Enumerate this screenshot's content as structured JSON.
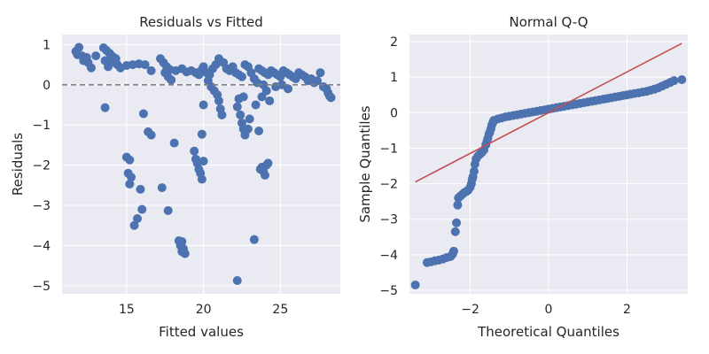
{
  "chart_data": [
    {
      "type": "scatter",
      "title": "Residuals vs Fitted",
      "xlabel": "Fitted values",
      "ylabel": "Residuals",
      "xlim": [
        10.8,
        28.9
      ],
      "ylim": [
        -5.2,
        1.25
      ],
      "xticks": [
        15,
        20,
        25
      ],
      "yticks": [
        -5,
        -4,
        -3,
        -2,
        -1,
        0,
        1
      ],
      "xtick_labels": [
        "15",
        "20",
        "25"
      ],
      "ytick_labels": [
        "−5",
        "−4",
        "−3",
        "−2",
        "−1",
        "0",
        "1"
      ],
      "grid": true,
      "reference_line": {
        "type": "horizontal",
        "y": 0,
        "style": "dashed",
        "color": "#808080"
      },
      "color": "#4c72b0",
      "points": [
        [
          11.7,
          0.83
        ],
        [
          11.9,
          0.93
        ],
        [
          12.1,
          0.72
        ],
        [
          12.3,
          0.62
        ],
        [
          12.5,
          0.55
        ],
        [
          12.4,
          0.68
        ],
        [
          12.7,
          0.42
        ],
        [
          13.0,
          0.72
        ],
        [
          11.8,
          0.75
        ],
        [
          12.2,
          0.6
        ],
        [
          13.5,
          0.92
        ],
        [
          13.7,
          0.85
        ],
        [
          13.9,
          0.78
        ],
        [
          14.1,
          0.7
        ],
        [
          14.3,
          0.65
        ],
        [
          13.6,
          0.6
        ],
        [
          14.0,
          0.55
        ],
        [
          14.4,
          0.5
        ],
        [
          13.8,
          0.45
        ],
        [
          14.6,
          0.42
        ],
        [
          15.0,
          0.48
        ],
        [
          15.4,
          0.5
        ],
        [
          15.8,
          0.52
        ],
        [
          16.2,
          0.5
        ],
        [
          16.6,
          0.35
        ],
        [
          17.2,
          0.65
        ],
        [
          17.4,
          0.55
        ],
        [
          17.6,
          0.45
        ],
        [
          17.8,
          0.38
        ],
        [
          17.5,
          0.3
        ],
        [
          17.7,
          0.2
        ],
        [
          17.9,
          0.12
        ],
        [
          18.2,
          0.35
        ],
        [
          18.6,
          0.4
        ],
        [
          18.9,
          0.32
        ],
        [
          19.2,
          0.35
        ],
        [
          19.5,
          0.3
        ],
        [
          19.7,
          0.25
        ],
        [
          19.9,
          0.38
        ],
        [
          20.0,
          0.45
        ],
        [
          20.2,
          0.3
        ],
        [
          20.4,
          0.25
        ],
        [
          20.6,
          0.4
        ],
        [
          20.8,
          0.5
        ],
        [
          20.3,
          0.1
        ],
        [
          20.5,
          -0.05
        ],
        [
          20.7,
          -0.15
        ],
        [
          20.9,
          -0.25
        ],
        [
          21.0,
          -0.4
        ],
        [
          21.1,
          -0.6
        ],
        [
          21.2,
          -0.75
        ],
        [
          21.0,
          0.65
        ],
        [
          21.3,
          0.55
        ],
        [
          21.5,
          0.4
        ],
        [
          21.7,
          0.35
        ],
        [
          21.9,
          0.45
        ],
        [
          22.1,
          0.3
        ],
        [
          22.3,
          0.25
        ],
        [
          22.5,
          0.2
        ],
        [
          22.7,
          0.5
        ],
        [
          22.9,
          0.45
        ],
        [
          23.1,
          0.3
        ],
        [
          23.3,
          0.15
        ],
        [
          23.5,
          0.05
        ],
        [
          22.2,
          -0.55
        ],
        [
          22.4,
          -0.75
        ],
        [
          22.5,
          -0.95
        ],
        [
          22.6,
          -1.1
        ],
        [
          22.7,
          -1.25
        ],
        [
          22.9,
          -1.1
        ],
        [
          23.0,
          -0.85
        ],
        [
          22.3,
          -0.35
        ],
        [
          23.6,
          0.4
        ],
        [
          23.8,
          0.35
        ],
        [
          24.0,
          0.3
        ],
        [
          24.2,
          0.25
        ],
        [
          24.4,
          0.35
        ],
        [
          24.6,
          0.3
        ],
        [
          24.8,
          0.25
        ],
        [
          25.0,
          0.2
        ],
        [
          25.2,
          0.35
        ],
        [
          25.4,
          0.3
        ],
        [
          25.6,
          0.25
        ],
        [
          25.8,
          0.2
        ],
        [
          26.0,
          0.15
        ],
        [
          26.2,
          0.3
        ],
        [
          26.4,
          0.25
        ],
        [
          26.6,
          0.2
        ],
        [
          26.8,
          0.1
        ],
        [
          27.0,
          0.15
        ],
        [
          27.2,
          0.05
        ],
        [
          27.4,
          0.1
        ],
        [
          27.6,
          0.3
        ],
        [
          27.8,
          -0.05
        ],
        [
          28.0,
          -0.1
        ],
        [
          28.1,
          -0.2
        ],
        [
          28.2,
          -0.28
        ],
        [
          28.3,
          -0.32
        ],
        [
          25.1,
          0.0
        ],
        [
          25.5,
          -0.1
        ],
        [
          24.3,
          -0.4
        ],
        [
          23.8,
          -0.3
        ],
        [
          23.9,
          0.0
        ],
        [
          24.7,
          -0.05
        ],
        [
          23.4,
          -0.5
        ],
        [
          22.6,
          -0.3
        ],
        [
          24.1,
          -0.15
        ],
        [
          13.6,
          -0.57
        ],
        [
          16.1,
          -0.72
        ],
        [
          16.4,
          -1.17
        ],
        [
          16.6,
          -1.25
        ],
        [
          18.1,
          -1.45
        ],
        [
          19.9,
          -1.23
        ],
        [
          23.6,
          -1.15
        ],
        [
          20.0,
          -0.5
        ],
        [
          15.0,
          -1.8
        ],
        [
          15.2,
          -1.87
        ],
        [
          15.1,
          -2.2
        ],
        [
          15.3,
          -2.3
        ],
        [
          15.2,
          -2.47
        ],
        [
          15.9,
          -2.6
        ],
        [
          16.0,
          -3.1
        ],
        [
          15.7,
          -3.33
        ],
        [
          15.5,
          -3.5
        ],
        [
          17.3,
          -2.56
        ],
        [
          17.7,
          -3.13
        ],
        [
          19.4,
          -1.65
        ],
        [
          19.5,
          -1.85
        ],
        [
          19.6,
          -1.95
        ],
        [
          19.7,
          -2.1
        ],
        [
          19.8,
          -2.2
        ],
        [
          19.9,
          -2.35
        ],
        [
          20.0,
          -1.9
        ],
        [
          23.8,
          -2.05
        ],
        [
          23.9,
          -2.15
        ],
        [
          24.0,
          -2.25
        ],
        [
          23.7,
          -2.1
        ],
        [
          24.1,
          -2.0
        ],
        [
          24.2,
          -1.95
        ],
        [
          18.4,
          -3.88
        ],
        [
          18.6,
          -3.9
        ],
        [
          18.5,
          -4.0
        ],
        [
          18.7,
          -4.08
        ],
        [
          18.6,
          -4.15
        ],
        [
          18.8,
          -4.2
        ],
        [
          23.3,
          -3.85
        ],
        [
          22.2,
          -4.87
        ]
      ]
    },
    {
      "type": "scatter",
      "title": "Normal Q-Q",
      "xlabel": "Theoretical Quantiles",
      "ylabel": "Sample Quantiles",
      "xlim": [
        -3.55,
        3.55
      ],
      "ylim": [
        -5.1,
        2.2
      ],
      "xticks": [
        -2,
        0,
        2
      ],
      "yticks": [
        -5,
        -4,
        -3,
        -2,
        -1,
        0,
        1,
        2
      ],
      "xtick_labels": [
        "−2",
        "0",
        "2"
      ],
      "ytick_labels": [
        "−5",
        "−4",
        "−3",
        "−2",
        "−1",
        "0",
        "1",
        "2"
      ],
      "grid": true,
      "reference_line": {
        "type": "line",
        "x1": -3.4,
        "y1": -1.95,
        "x2": 3.4,
        "y2": 1.95,
        "color": "#c44e52"
      },
      "color": "#4c72b0",
      "points": [
        [
          -3.4,
          -4.85
        ],
        [
          -3.1,
          -4.22
        ],
        [
          -3.0,
          -4.2
        ],
        [
          -2.9,
          -4.17
        ],
        [
          -2.8,
          -4.15
        ],
        [
          -2.7,
          -4.12
        ],
        [
          -2.6,
          -4.08
        ],
        [
          -2.5,
          -4.05
        ],
        [
          -2.45,
          -3.98
        ],
        [
          -2.42,
          -3.9
        ],
        [
          -2.38,
          -3.35
        ],
        [
          -2.35,
          -3.1
        ],
        [
          -2.32,
          -2.6
        ],
        [
          -2.3,
          -2.4
        ],
        [
          -2.25,
          -2.35
        ],
        [
          -2.2,
          -2.3
        ],
        [
          -2.15,
          -2.25
        ],
        [
          -2.1,
          -2.22
        ],
        [
          -2.05,
          -2.18
        ],
        [
          -2.0,
          -2.1
        ],
        [
          -1.97,
          -2.0
        ],
        [
          -1.95,
          -1.88
        ],
        [
          -1.93,
          -1.8
        ],
        [
          -1.9,
          -1.65
        ],
        [
          -1.88,
          -1.45
        ],
        [
          -1.85,
          -1.3
        ],
        [
          -1.8,
          -1.22
        ],
        [
          -1.75,
          -1.17
        ],
        [
          -1.7,
          -1.12
        ],
        [
          -1.65,
          -1.05
        ],
        [
          -1.6,
          -0.9
        ],
        [
          -1.57,
          -0.8
        ],
        [
          -1.55,
          -0.72
        ],
        [
          -1.52,
          -0.6
        ],
        [
          -1.5,
          -0.55
        ],
        [
          -1.47,
          -0.45
        ],
        [
          -1.45,
          -0.35
        ],
        [
          -1.42,
          -0.28
        ],
        [
          -1.4,
          -0.22
        ],
        [
          -1.3,
          -0.18
        ],
        [
          -1.2,
          -0.15
        ],
        [
          -1.1,
          -0.12
        ],
        [
          -1.0,
          -0.1
        ],
        [
          -0.9,
          -0.08
        ],
        [
          -0.8,
          -0.06
        ],
        [
          -0.7,
          -0.04
        ],
        [
          -0.6,
          -0.02
        ],
        [
          -0.5,
          0.0
        ],
        [
          -0.4,
          0.02
        ],
        [
          -0.3,
          0.04
        ],
        [
          -0.2,
          0.06
        ],
        [
          -0.1,
          0.08
        ],
        [
          0.0,
          0.1
        ],
        [
          0.1,
          0.12
        ],
        [
          0.2,
          0.14
        ],
        [
          0.3,
          0.16
        ],
        [
          0.4,
          0.18
        ],
        [
          0.5,
          0.2
        ],
        [
          0.6,
          0.22
        ],
        [
          0.7,
          0.24
        ],
        [
          0.8,
          0.26
        ],
        [
          0.9,
          0.28
        ],
        [
          1.0,
          0.3
        ],
        [
          1.1,
          0.32
        ],
        [
          1.2,
          0.34
        ],
        [
          1.3,
          0.36
        ],
        [
          1.4,
          0.38
        ],
        [
          1.5,
          0.4
        ],
        [
          1.6,
          0.42
        ],
        [
          1.7,
          0.44
        ],
        [
          1.8,
          0.46
        ],
        [
          1.9,
          0.48
        ],
        [
          2.0,
          0.5
        ],
        [
          2.1,
          0.52
        ],
        [
          2.2,
          0.54
        ],
        [
          2.3,
          0.56
        ],
        [
          2.4,
          0.58
        ],
        [
          2.5,
          0.6
        ],
        [
          2.6,
          0.63
        ],
        [
          2.7,
          0.66
        ],
        [
          2.8,
          0.7
        ],
        [
          2.9,
          0.75
        ],
        [
          3.0,
          0.8
        ],
        [
          3.1,
          0.85
        ],
        [
          3.2,
          0.9
        ],
        [
          3.4,
          0.93
        ]
      ]
    }
  ]
}
